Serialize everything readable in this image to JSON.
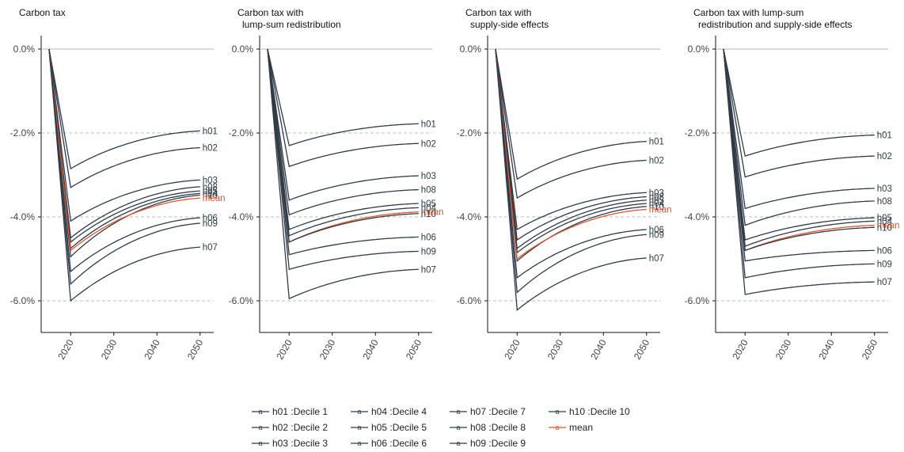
{
  "chart_data": {
    "type": "line",
    "x_ticks": [
      2020,
      2030,
      2040,
      2050
    ],
    "y_ticks": [
      0,
      -2,
      -4,
      -6
    ],
    "y_tick_labels": [
      "0.0%",
      "-2.0%",
      "-4.0%",
      "-6.0%"
    ],
    "y_range": [
      -6.8,
      0.3
    ],
    "x_range": [
      2013,
      2053
    ],
    "colors": {
      "decile": "#2f3b48",
      "mean": "#e0562b",
      "zero_line": "#b5b5b5",
      "grid": "#bdbdbd"
    },
    "panels": [
      {
        "title": [
          "Carbon tax"
        ],
        "series": [
          {
            "name": "h01",
            "min": -2.85,
            "end": -1.95
          },
          {
            "name": "h02",
            "min": -3.3,
            "end": -2.35
          },
          {
            "name": "h03",
            "min": -4.1,
            "end": -3.12
          },
          {
            "name": "h08",
            "min": -4.5,
            "end": -3.28
          },
          {
            "name": "h05",
            "min": -4.6,
            "end": -3.38
          },
          {
            "name": "h04",
            "min": -4.75,
            "end": -3.44
          },
          {
            "name": "h10",
            "min": -4.95,
            "end": -3.48
          },
          {
            "name": "mean",
            "min": -4.8,
            "end": -3.55
          },
          {
            "name": "h06",
            "min": -5.3,
            "end": -4.02
          },
          {
            "name": "h09",
            "min": -5.6,
            "end": -4.15
          },
          {
            "name": "h07",
            "min": -6.0,
            "end": -4.72
          }
        ]
      },
      {
        "title": [
          "Carbon tax with",
          "lump-sum redistribution"
        ],
        "series": [
          {
            "name": "h01",
            "min": -2.3,
            "end": -1.78
          },
          {
            "name": "h02",
            "min": -2.8,
            "end": -2.25
          },
          {
            "name": "h03",
            "min": -3.6,
            "end": -3.02
          },
          {
            "name": "h08",
            "min": -3.95,
            "end": -3.35
          },
          {
            "name": "h05",
            "min": -4.3,
            "end": -3.68
          },
          {
            "name": "h04",
            "min": -4.45,
            "end": -3.78
          },
          {
            "name": "mean",
            "min": -4.6,
            "end": -3.88
          },
          {
            "name": "h10",
            "min": -4.6,
            "end": -3.92
          },
          {
            "name": "h06",
            "min": -4.9,
            "end": -4.48
          },
          {
            "name": "h09",
            "min": -5.25,
            "end": -4.82
          },
          {
            "name": "h07",
            "min": -5.95,
            "end": -5.25
          }
        ]
      },
      {
        "title": [
          "Carbon tax with",
          "supply-side effects"
        ],
        "series": [
          {
            "name": "h01",
            "min": -3.1,
            "end": -2.2
          },
          {
            "name": "h02",
            "min": -3.55,
            "end": -2.65
          },
          {
            "name": "h03",
            "min": -4.3,
            "end": -3.42
          },
          {
            "name": "h08",
            "min": -4.55,
            "end": -3.52
          },
          {
            "name": "h05",
            "min": -4.75,
            "end": -3.6
          },
          {
            "name": "h04",
            "min": -4.85,
            "end": -3.68
          },
          {
            "name": "h10",
            "min": -5.05,
            "end": -3.75
          },
          {
            "name": "mean",
            "min": -5.0,
            "end": -3.82
          },
          {
            "name": "h06",
            "min": -5.45,
            "end": -4.3
          },
          {
            "name": "h09",
            "min": -5.8,
            "end": -4.42
          },
          {
            "name": "h07",
            "min": -6.22,
            "end": -4.98
          }
        ]
      },
      {
        "title": [
          "Carbon tax with lump-sum",
          "redistribution and supply-side effects"
        ],
        "series": [
          {
            "name": "h01",
            "min": -2.55,
            "end": -2.05
          },
          {
            "name": "h02",
            "min": -3.05,
            "end": -2.55
          },
          {
            "name": "h03",
            "min": -3.8,
            "end": -3.32
          },
          {
            "name": "h08",
            "min": -4.2,
            "end": -3.62
          },
          {
            "name": "h05",
            "min": -4.55,
            "end": -4.02
          },
          {
            "name": "h04",
            "min": -4.7,
            "end": -4.1
          },
          {
            "name": "mean",
            "min": -4.8,
            "end": -4.2
          },
          {
            "name": "h10",
            "min": -4.8,
            "end": -4.25
          },
          {
            "name": "h06",
            "min": -5.05,
            "end": -4.8
          },
          {
            "name": "h09",
            "min": -5.45,
            "end": -5.12
          },
          {
            "name": "h07",
            "min": -5.85,
            "end": -5.55
          }
        ]
      }
    ],
    "legend": [
      {
        "key": "h01",
        "label": "h01 :Decile 1"
      },
      {
        "key": "h02",
        "label": "h02 :Decile 2"
      },
      {
        "key": "h03",
        "label": "h03 :Decile 3"
      },
      {
        "key": "h04",
        "label": "h04 :Decile 4"
      },
      {
        "key": "h05",
        "label": "h05 :Decile 5"
      },
      {
        "key": "h06",
        "label": "h06 :Decile 6"
      },
      {
        "key": "h07",
        "label": "h07 :Decile 7"
      },
      {
        "key": "h08",
        "label": "h08 :Decile 8"
      },
      {
        "key": "h09",
        "label": "h09 :Decile 9"
      },
      {
        "key": "h10",
        "label": "h10 :Decile 10"
      },
      {
        "key": "mean",
        "label": "mean"
      }
    ],
    "legend_marker_glyph": "a"
  }
}
